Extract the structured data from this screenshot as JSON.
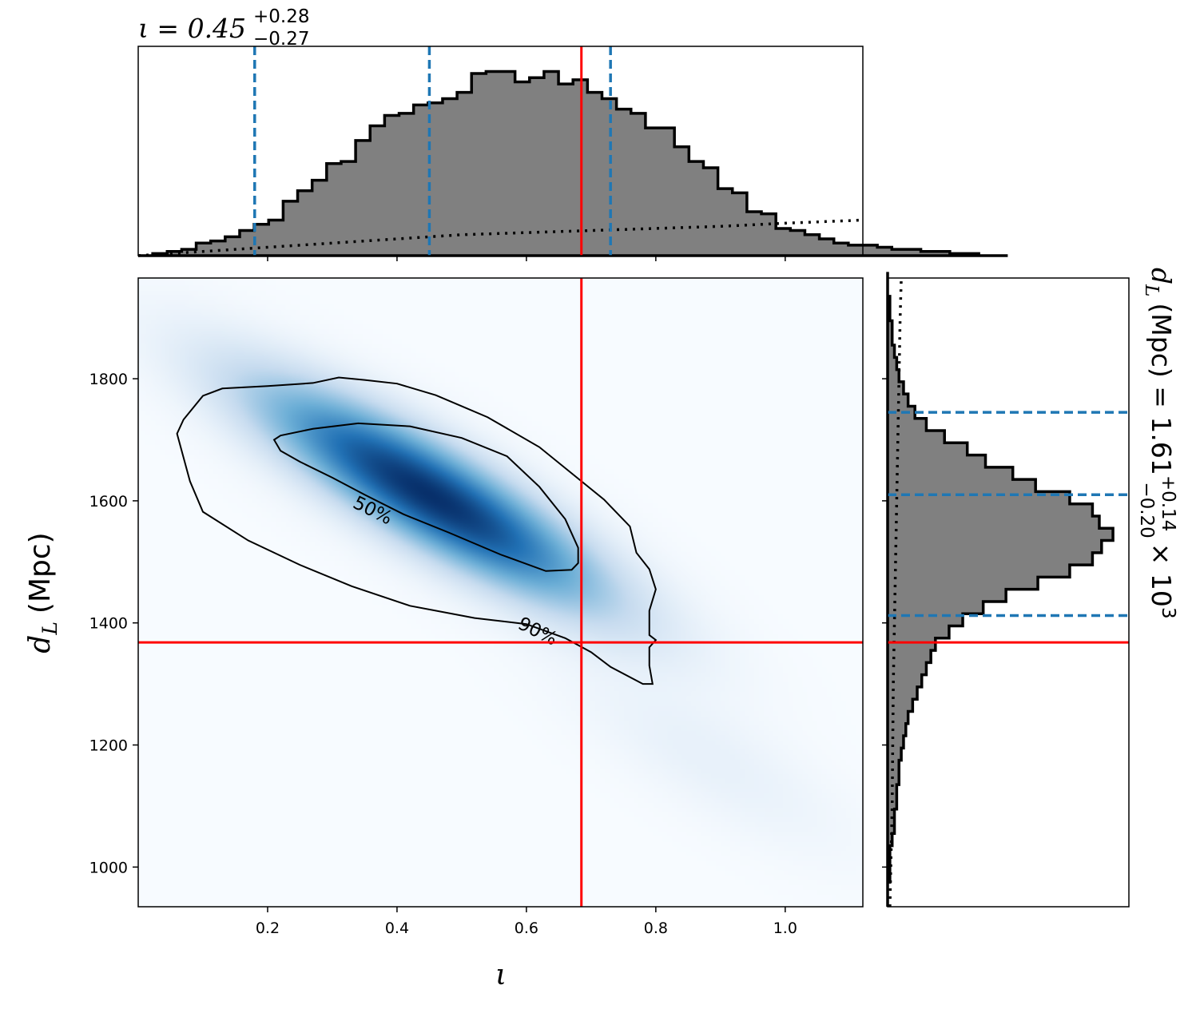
{
  "chart_data": {
    "type": "corner",
    "colors": {
      "hist_fill": "#808080",
      "hist_edge": "#000000",
      "quantile": "#1f77b4",
      "truth": "#ff0000",
      "density_cmap": [
        "#f7fbff",
        "#c6dbef",
        "#6baed6",
        "#2171b5",
        "#08306b"
      ]
    },
    "x_param": {
      "symbol": "ι",
      "title_prefix": "ι = 0.45",
      "title_sup": "+0.28",
      "title_sub": "−0.27",
      "xlabel": "ι",
      "range": [
        0.0,
        1.12
      ],
      "ticks": [
        0.2,
        0.4,
        0.6,
        0.8,
        1.0
      ],
      "tick_labels": [
        "0.2",
        "0.4",
        "0.6",
        "0.8",
        "1.0"
      ],
      "quantiles": [
        0.18,
        0.45,
        0.73
      ],
      "truth": 0.685
    },
    "y_param": {
      "ylabel_sym": "d",
      "ylabel_sub": "L",
      "ylabel_unit": "(Mpc)",
      "range": [
        935,
        1965
      ],
      "ticks": [
        1000,
        1200,
        1400,
        1600,
        1800
      ],
      "tick_labels": [
        "1000",
        "1200",
        "1400",
        "1600",
        "1800"
      ],
      "title_prefix": "(Mpc) = 1.61",
      "title_sup": "+0.14",
      "title_sub": "−0.20",
      "title_suffix": "× 10",
      "title_exp": "3",
      "quantiles": [
        1412,
        1610,
        1745
      ],
      "truth": 1368
    },
    "x_hist": {
      "bin_start": 0.0,
      "bin_width": 0.0224,
      "counts": [
        0.0,
        0.01,
        0.02,
        0.03,
        0.06,
        0.07,
        0.09,
        0.12,
        0.15,
        0.17,
        0.26,
        0.31,
        0.36,
        0.44,
        0.45,
        0.55,
        0.62,
        0.67,
        0.68,
        0.72,
        0.73,
        0.75,
        0.78,
        0.87,
        0.88,
        0.88,
        0.83,
        0.85,
        0.88,
        0.82,
        0.84,
        0.78,
        0.75,
        0.7,
        0.68,
        0.61,
        0.61,
        0.52,
        0.45,
        0.42,
        0.32,
        0.3,
        0.21,
        0.2,
        0.13,
        0.12,
        0.1,
        0.08,
        0.06,
        0.05,
        0.05,
        0.04,
        0.03,
        0.03,
        0.02,
        0.02,
        0.01,
        0.01,
        0.0,
        0.0
      ]
    },
    "x_prior": {
      "x": [
        0.0,
        0.1,
        0.2,
        0.3,
        0.4,
        0.5,
        0.6,
        0.7,
        0.8,
        0.9,
        1.0,
        1.12
      ],
      "density": [
        0.0,
        0.02,
        0.04,
        0.06,
        0.08,
        0.1,
        0.11,
        0.12,
        0.13,
        0.14,
        0.155,
        0.17
      ]
    },
    "y_hist": {
      "bin_start": 935,
      "bin_width": 20,
      "counts": [
        0.0,
        0.0,
        0.01,
        0.01,
        0.01,
        0.02,
        0.03,
        0.03,
        0.04,
        0.04,
        0.05,
        0.05,
        0.06,
        0.07,
        0.08,
        0.09,
        0.11,
        0.13,
        0.15,
        0.17,
        0.19,
        0.21,
        0.27,
        0.33,
        0.42,
        0.52,
        0.66,
        0.8,
        0.9,
        0.94,
        0.99,
        0.93,
        0.9,
        0.8,
        0.65,
        0.55,
        0.43,
        0.35,
        0.25,
        0.17,
        0.12,
        0.09,
        0.07,
        0.05,
        0.04,
        0.03,
        0.02,
        0.02,
        0.01,
        0.01,
        0.0,
        0.0
      ]
    },
    "y_prior": {
      "y": [
        935,
        1100,
        1300,
        1500,
        1700,
        1800,
        1900,
        1965
      ],
      "density": [
        0.01,
        0.02,
        0.025,
        0.035,
        0.045,
        0.05,
        0.055,
        0.06
      ]
    },
    "density2d": {
      "mean": [
        0.45,
        1610
      ],
      "sd": [
        0.17,
        115
      ],
      "corr": -0.86,
      "tail_weight": 0.05
    },
    "contours": [
      {
        "level": "50%",
        "label": "50%",
        "label_at": [
          0.33,
          1590
        ],
        "points": [
          [
            0.21,
            1700
          ],
          [
            0.22,
            1707
          ],
          [
            0.27,
            1718
          ],
          [
            0.34,
            1727
          ],
          [
            0.42,
            1722
          ],
          [
            0.5,
            1703
          ],
          [
            0.57,
            1673
          ],
          [
            0.62,
            1623
          ],
          [
            0.66,
            1570
          ],
          [
            0.68,
            1523
          ],
          [
            0.68,
            1498
          ],
          [
            0.67,
            1487
          ],
          [
            0.63,
            1485
          ],
          [
            0.56,
            1512
          ],
          [
            0.48,
            1548
          ],
          [
            0.41,
            1578
          ],
          [
            0.35,
            1610
          ],
          [
            0.3,
            1638
          ],
          [
            0.25,
            1664
          ],
          [
            0.22,
            1682
          ],
          [
            0.21,
            1700
          ]
        ]
      },
      {
        "level": "90%",
        "label": "90%",
        "label_at": [
          0.585,
          1392
        ],
        "points": [
          [
            0.07,
            1733
          ],
          [
            0.1,
            1772
          ],
          [
            0.13,
            1784
          ],
          [
            0.2,
            1788
          ],
          [
            0.27,
            1793
          ],
          [
            0.31,
            1802
          ],
          [
            0.35,
            1798
          ],
          [
            0.4,
            1792
          ],
          [
            0.46,
            1773
          ],
          [
            0.54,
            1737
          ],
          [
            0.62,
            1688
          ],
          [
            0.67,
            1645
          ],
          [
            0.72,
            1602
          ],
          [
            0.76,
            1558
          ],
          [
            0.77,
            1515
          ],
          [
            0.79,
            1488
          ],
          [
            0.8,
            1455
          ],
          [
            0.79,
            1420
          ],
          [
            0.79,
            1400
          ],
          [
            0.79,
            1380
          ],
          [
            0.8,
            1372
          ],
          [
            0.79,
            1360
          ],
          [
            0.79,
            1330
          ],
          [
            0.795,
            1300
          ],
          [
            0.78,
            1300
          ],
          [
            0.73,
            1328
          ],
          [
            0.7,
            1352
          ],
          [
            0.66,
            1375
          ],
          [
            0.6,
            1398
          ],
          [
            0.52,
            1408
          ],
          [
            0.42,
            1428
          ],
          [
            0.33,
            1460
          ],
          [
            0.25,
            1495
          ],
          [
            0.17,
            1535
          ],
          [
            0.1,
            1582
          ],
          [
            0.08,
            1632
          ],
          [
            0.06,
            1710
          ],
          [
            0.07,
            1733
          ]
        ]
      }
    ]
  }
}
